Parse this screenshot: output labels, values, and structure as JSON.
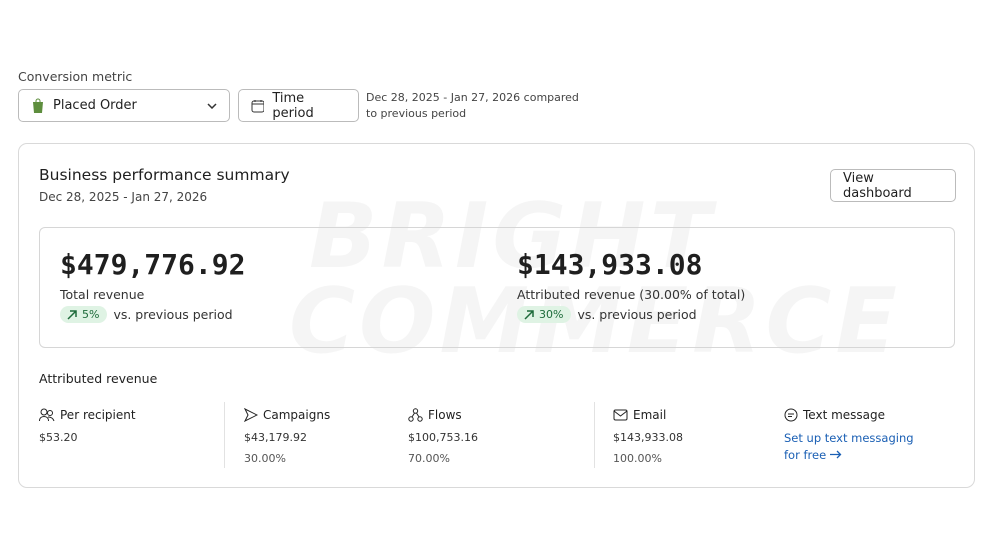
{
  "filters": {
    "label": "Conversion metric",
    "metric": "Placed Order",
    "period_button": "Time period",
    "period_note": "Dec 28, 2025 - Jan 27, 2026 compared to previous period"
  },
  "watermark": [
    "BRIGHT",
    "COMMERCE"
  ],
  "summary": {
    "title": "Business performance summary",
    "date_range": "Dec 28, 2025 - Jan 27, 2026",
    "button": "View dashboard",
    "kpis": [
      {
        "value": "$479,776.92",
        "label": "Total revenue",
        "change": "5%",
        "comparison": "vs. previous period"
      },
      {
        "value": "$143,933.08",
        "label": "Attributed revenue (30.00% of total)",
        "change": "30%",
        "comparison": "vs. previous period"
      }
    ]
  },
  "attributed": {
    "title": "Attributed revenue",
    "metrics": [
      {
        "name": "Per recipient",
        "value": "$53.20"
      },
      {
        "name": "Campaigns",
        "value": "$43,179.92",
        "share": "30.00%"
      },
      {
        "name": "Flows",
        "value": "$100,753.16",
        "share": "70.00%"
      },
      {
        "name": "Email",
        "value": "$143,933.08",
        "share": "100.00%"
      },
      {
        "name": "Text message",
        "link": "Set up text messaging for free"
      }
    ]
  }
}
